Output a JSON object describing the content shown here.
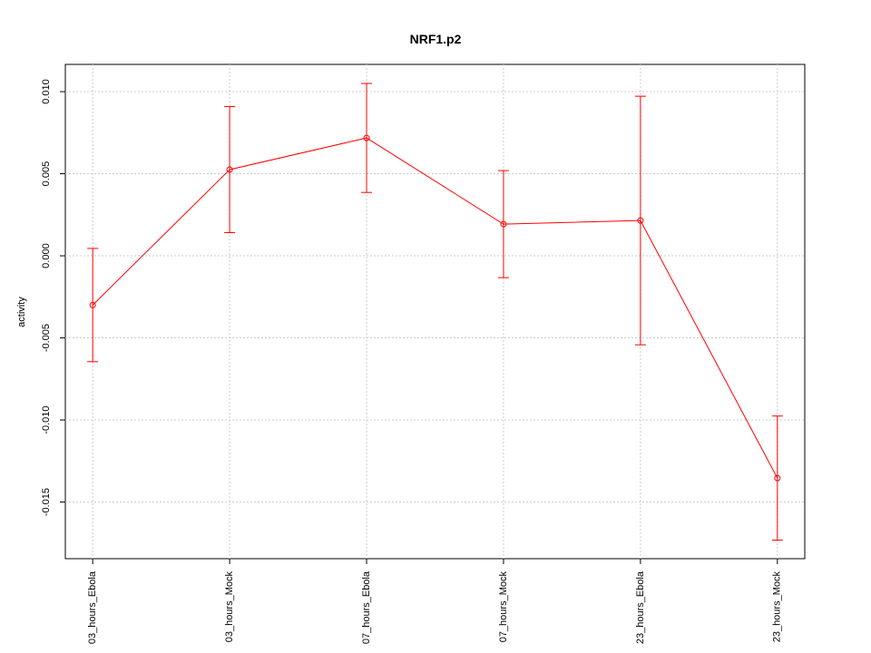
{
  "chart_data": {
    "type": "line",
    "title": "NRF1.p2",
    "y_label": "activity",
    "categories": [
      "03_hours_Ebola",
      "03_hours_Mock",
      "07_hours_Ebola",
      "07_hours_Mock",
      "23_hours_Ebola",
      "23_hours_Mock"
    ],
    "series": [
      {
        "color": "#ff0000",
        "values": [
          -0.003,
          0.00525,
          0.00718,
          0.00193,
          0.00215,
          -0.01354
        ],
        "errors": [
          0.00345,
          0.00384,
          0.00332,
          0.00326,
          0.00757,
          0.00378
        ]
      }
    ],
    "ylim": [
      -0.01845,
      0.01166
    ],
    "yticks": [
      {
        "value": -0.015,
        "label": "-0.015"
      },
      {
        "value": -0.01,
        "label": "-0.010"
      },
      -0.005,
      {
        "value": 0,
        "label": "0.000"
      },
      0.005,
      {
        "value": 0.01,
        "label": "0.010"
      }
    ],
    "grid": true
  }
}
